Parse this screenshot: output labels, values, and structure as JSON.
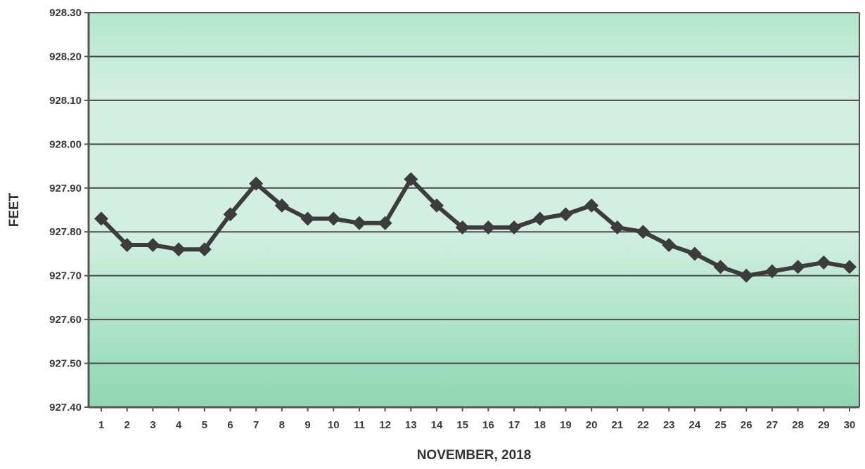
{
  "chart_data": {
    "type": "line",
    "title": "",
    "xlabel": "NOVEMBER, 2018",
    "ylabel": "FEET",
    "x": [
      1,
      2,
      3,
      4,
      5,
      6,
      7,
      8,
      9,
      10,
      11,
      12,
      13,
      14,
      15,
      16,
      17,
      18,
      19,
      20,
      21,
      22,
      23,
      24,
      25,
      26,
      27,
      28,
      29,
      30
    ],
    "x_tick_labels": [
      "1",
      "2",
      "3",
      "4",
      "5",
      "6",
      "7",
      "8",
      "9",
      "10",
      "11",
      "12",
      "13",
      "14",
      "15",
      "16",
      "17",
      "18",
      "19",
      "20",
      "21",
      "22",
      "23",
      "24",
      "25",
      "26",
      "27",
      "28",
      "29",
      "30"
    ],
    "y_ticks": [
      927.4,
      927.5,
      927.6,
      927.7,
      927.8,
      927.9,
      928.0,
      928.1,
      928.2,
      928.3
    ],
    "y_tick_labels": [
      "927.40",
      "927.50",
      "927.60",
      "927.70",
      "927.80",
      "927.90",
      "928.00",
      "928.10",
      "928.20",
      "928.30"
    ],
    "ylim": [
      927.4,
      928.3
    ],
    "grid": true,
    "series": [
      {
        "values": [
          927.83,
          927.77,
          927.77,
          927.76,
          927.76,
          927.84,
          927.91,
          927.86,
          927.83,
          927.83,
          927.82,
          927.82,
          927.92,
          927.86,
          927.81,
          927.81,
          927.81,
          927.83,
          927.84,
          927.86,
          927.81,
          927.8,
          927.77,
          927.75,
          927.72,
          927.7,
          927.71,
          927.72,
          927.73,
          927.72
        ],
        "color": "#3c3c3c",
        "marker": "diamond"
      }
    ],
    "colors": {
      "plot_fill_light": "#d2efe1",
      "plot_fill_mid": "#b4e6cd",
      "plot_fill_dark": "#8fd6b4",
      "gridline": "#4a4a4a",
      "axis": "#555555"
    }
  }
}
